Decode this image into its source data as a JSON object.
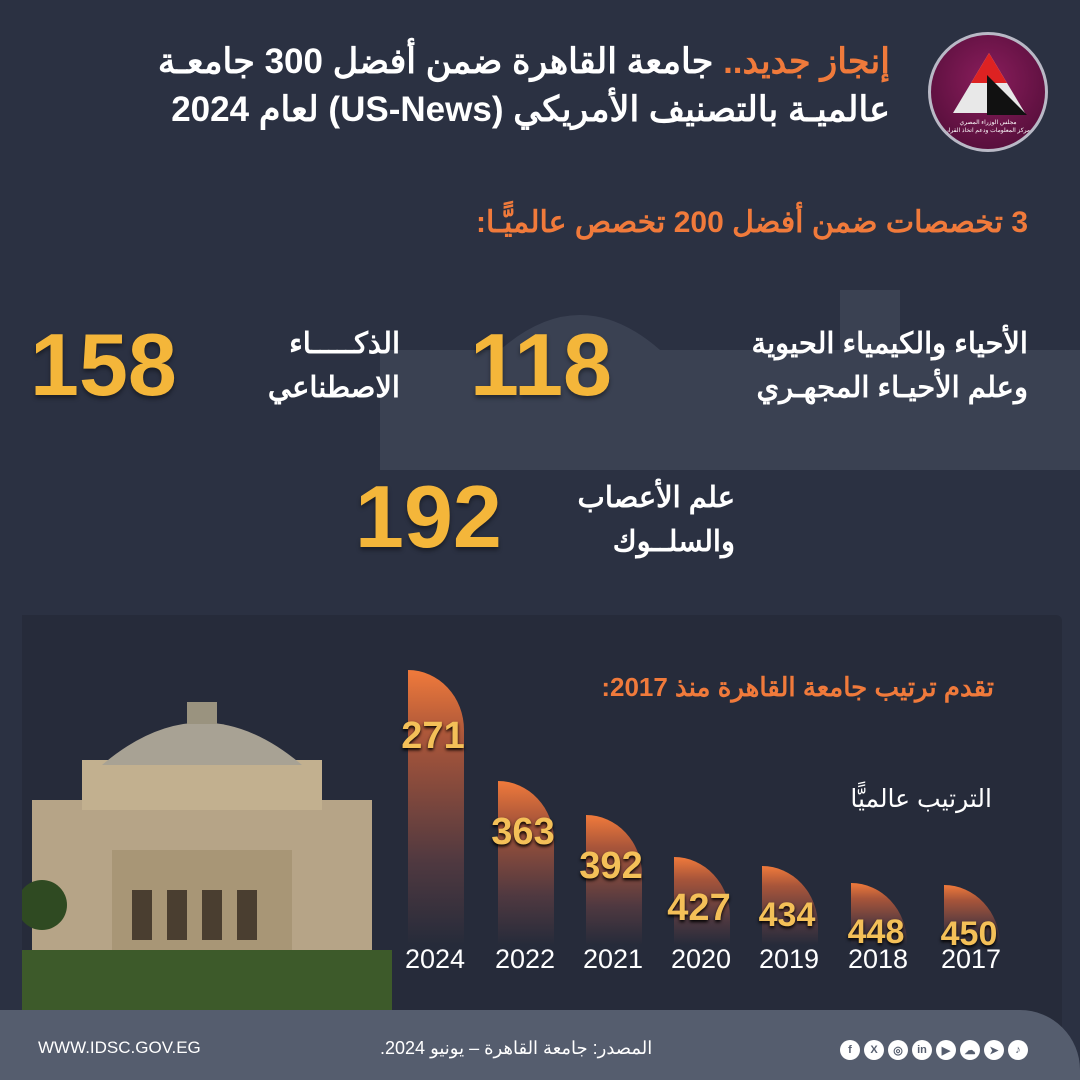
{
  "header": {
    "title_highlight": "إنجاز جديد..",
    "title_rest": " جامعة القاهرة ضمن أفضل 300 جامعـة",
    "title_line2": "عالميـة بالتصنيف الأمريكي (US-News) لعام 2024",
    "logo_text": [
      "مجلس الوزراء المصري",
      "مركز المعلومات ودعم اتخاذ القرار"
    ]
  },
  "specialties": {
    "heading": "3 تخصصات ضمن أفضل 200 تخصص عالميًّـا:",
    "items": [
      {
        "rank": "118",
        "label_line1": "الأحياء والكيمياء الحيوية",
        "label_line2": "وعلم الأحيـاء المجهـري"
      },
      {
        "rank": "158",
        "label_line1": "الذكـــــاء",
        "label_line2": "الاصطناعي"
      },
      {
        "rank": "192",
        "label_line1": "علم الأعصاب",
        "label_line2": "والسلــوك"
      }
    ]
  },
  "chart_data": {
    "type": "bar",
    "title": "تقدم ترتيب جامعة القاهرة منذ 2017:",
    "ylabel": "الترتيب عالميًّا",
    "categories": [
      "2024",
      "2022",
      "2021",
      "2020",
      "2019",
      "2018",
      "2017"
    ],
    "values": [
      271,
      363,
      392,
      427,
      434,
      448,
      450
    ],
    "note": "lower rank drawn as taller bar",
    "colors": {
      "bar": "#f07a3b",
      "label": "#f4c058"
    }
  },
  "footer": {
    "website": "WWW.IDSC.GOV.EG",
    "source": "المصدر: جامعة القاهرة – يونيو 2024.",
    "social_icons": [
      "facebook-icon",
      "x-icon",
      "instagram-icon",
      "linkedin-icon",
      "youtube-icon",
      "soundcloud-icon",
      "telegram-icon",
      "tiktok-icon"
    ],
    "social_glyphs": [
      "f",
      "X",
      "◎",
      "in",
      "▶",
      "☁",
      "➤",
      "♪"
    ]
  }
}
